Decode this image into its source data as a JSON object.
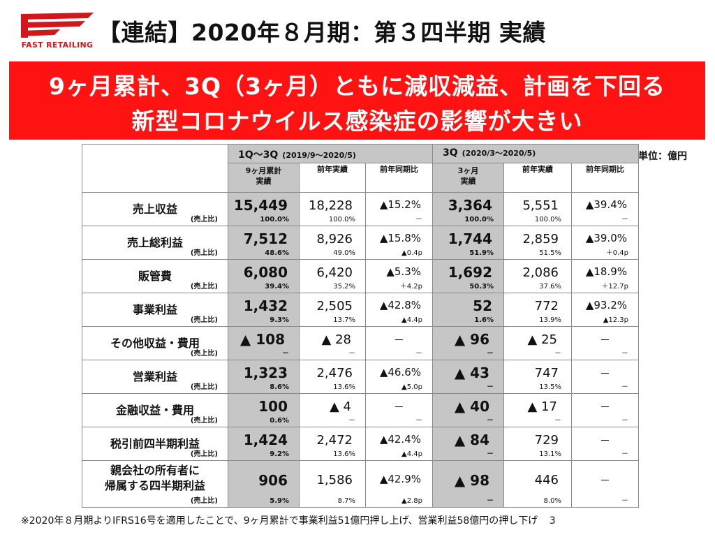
{
  "logo": {
    "text": "FAST RETAILING",
    "brand_color": "#d4151b"
  },
  "title": "【連結】2020年８月期：第３四半期 実績",
  "banner": {
    "line1": "9ヶ月累計、3Q（3ヶ月）ともに減収減益、計画を下回る",
    "line2": "新型コロナウイルス感染症の影響が大きい",
    "color": "#ff1212"
  },
  "unit": "単位：億円",
  "table": {
    "group1": {
      "title": "1Q～3Q",
      "range": "(2019/9～2020/5)"
    },
    "group2": {
      "title": "3Q",
      "range": "(2020/3～2020/5)"
    },
    "subheaders": {
      "g1_actual_1": "9ヶ月累計",
      "g1_actual_2": "実績",
      "g1_prev": "前年実績",
      "g1_yoy": "前年同期比",
      "g2_actual_1": "3ヶ月",
      "g2_actual_2": "実績",
      "g2_prev": "前年実績",
      "g2_yoy": "前年同期比"
    },
    "ratio_label": "(売上比)",
    "rows": [
      {
        "label": "売上収益",
        "c1": "15,449",
        "c1r": "100.0%",
        "c2": "18,228",
        "c2r": "100.0%",
        "c3": "▲15.2%",
        "c3r": "－",
        "c4": "3,364",
        "c4r": "100.0%",
        "c5": "5,551",
        "c5r": "100.0%",
        "c6": "▲39.4%",
        "c6r": "－"
      },
      {
        "label": "売上総利益",
        "c1": "7,512",
        "c1r": "48.6%",
        "c2": "8,926",
        "c2r": "49.0%",
        "c3": "▲15.8%",
        "c3r": "▲0.4p",
        "c4": "1,744",
        "c4r": "51.9%",
        "c5": "2,859",
        "c5r": "51.5%",
        "c6": "▲39.0%",
        "c6r": "＋0.4p"
      },
      {
        "label": "販管費",
        "c1": "6,080",
        "c1r": "39.4%",
        "c2": "6,420",
        "c2r": "35.2%",
        "c3": "▲5.3%",
        "c3r": "＋4.2p",
        "c4": "1,692",
        "c4r": "50.3%",
        "c5": "2,086",
        "c5r": "37.6%",
        "c6": "▲18.9%",
        "c6r": "＋12.7p"
      },
      {
        "label": "事業利益",
        "c1": "1,432",
        "c1r": "9.3%",
        "c2": "2,505",
        "c2r": "13.7%",
        "c3": "▲42.8%",
        "c3r": "▲4.4p",
        "c4": "52",
        "c4r": "1.6%",
        "c5": "772",
        "c5r": "13.9%",
        "c6": "▲93.2%",
        "c6r": "▲12.3p"
      },
      {
        "label": "その他収益・費用",
        "c1": "▲ 108",
        "c1r": "－",
        "c2": "▲ 28",
        "c2r": "－",
        "c3": "－",
        "c3r": "－",
        "c4": "▲ 96",
        "c4r": "－",
        "c5": "▲ 25",
        "c5r": "－",
        "c6": "－",
        "c6r": "－"
      },
      {
        "label": "営業利益",
        "c1": "1,323",
        "c1r": "8.6%",
        "c2": "2,476",
        "c2r": "13.6%",
        "c3": "▲46.6%",
        "c3r": "▲5.0p",
        "c4": "▲ 43",
        "c4r": "－",
        "c5": "747",
        "c5r": "13.5%",
        "c6": "－",
        "c6r": "－"
      },
      {
        "label": "金融収益・費用",
        "c1": "100",
        "c1r": "0.6%",
        "c2": "▲ 4",
        "c2r": "－",
        "c3": "－",
        "c3r": "－",
        "c4": "▲ 40",
        "c4r": "－",
        "c5": "▲ 17",
        "c5r": "－",
        "c6": "－",
        "c6r": "－"
      },
      {
        "label": "税引前四半期利益",
        "c1": "1,424",
        "c1r": "9.2%",
        "c2": "2,472",
        "c2r": "13.6%",
        "c3": "▲42.4%",
        "c3r": "▲4.4p",
        "c4": "▲ 84",
        "c4r": "－",
        "c5": "729",
        "c5r": "13.1%",
        "c6": "－",
        "c6r": "－"
      },
      {
        "label1": "親会社の所有者に",
        "label2": "帰属する四半期利益",
        "c1": "906",
        "c1r": "5.9%",
        "c2": "1,586",
        "c2r": "8.7%",
        "c3": "▲42.9%",
        "c3r": "▲2.8p",
        "c4": "▲ 98",
        "c4r": "－",
        "c5": "446",
        "c5r": "8.0%",
        "c6": "－",
        "c6r": "－"
      }
    ]
  },
  "footnote": "※2020年８月期よりIFRS16号を適用したことで、9ヶ月累計で事業利益51億円押し上げ、営業利益58億円の押し下げ",
  "page_number": "3"
}
